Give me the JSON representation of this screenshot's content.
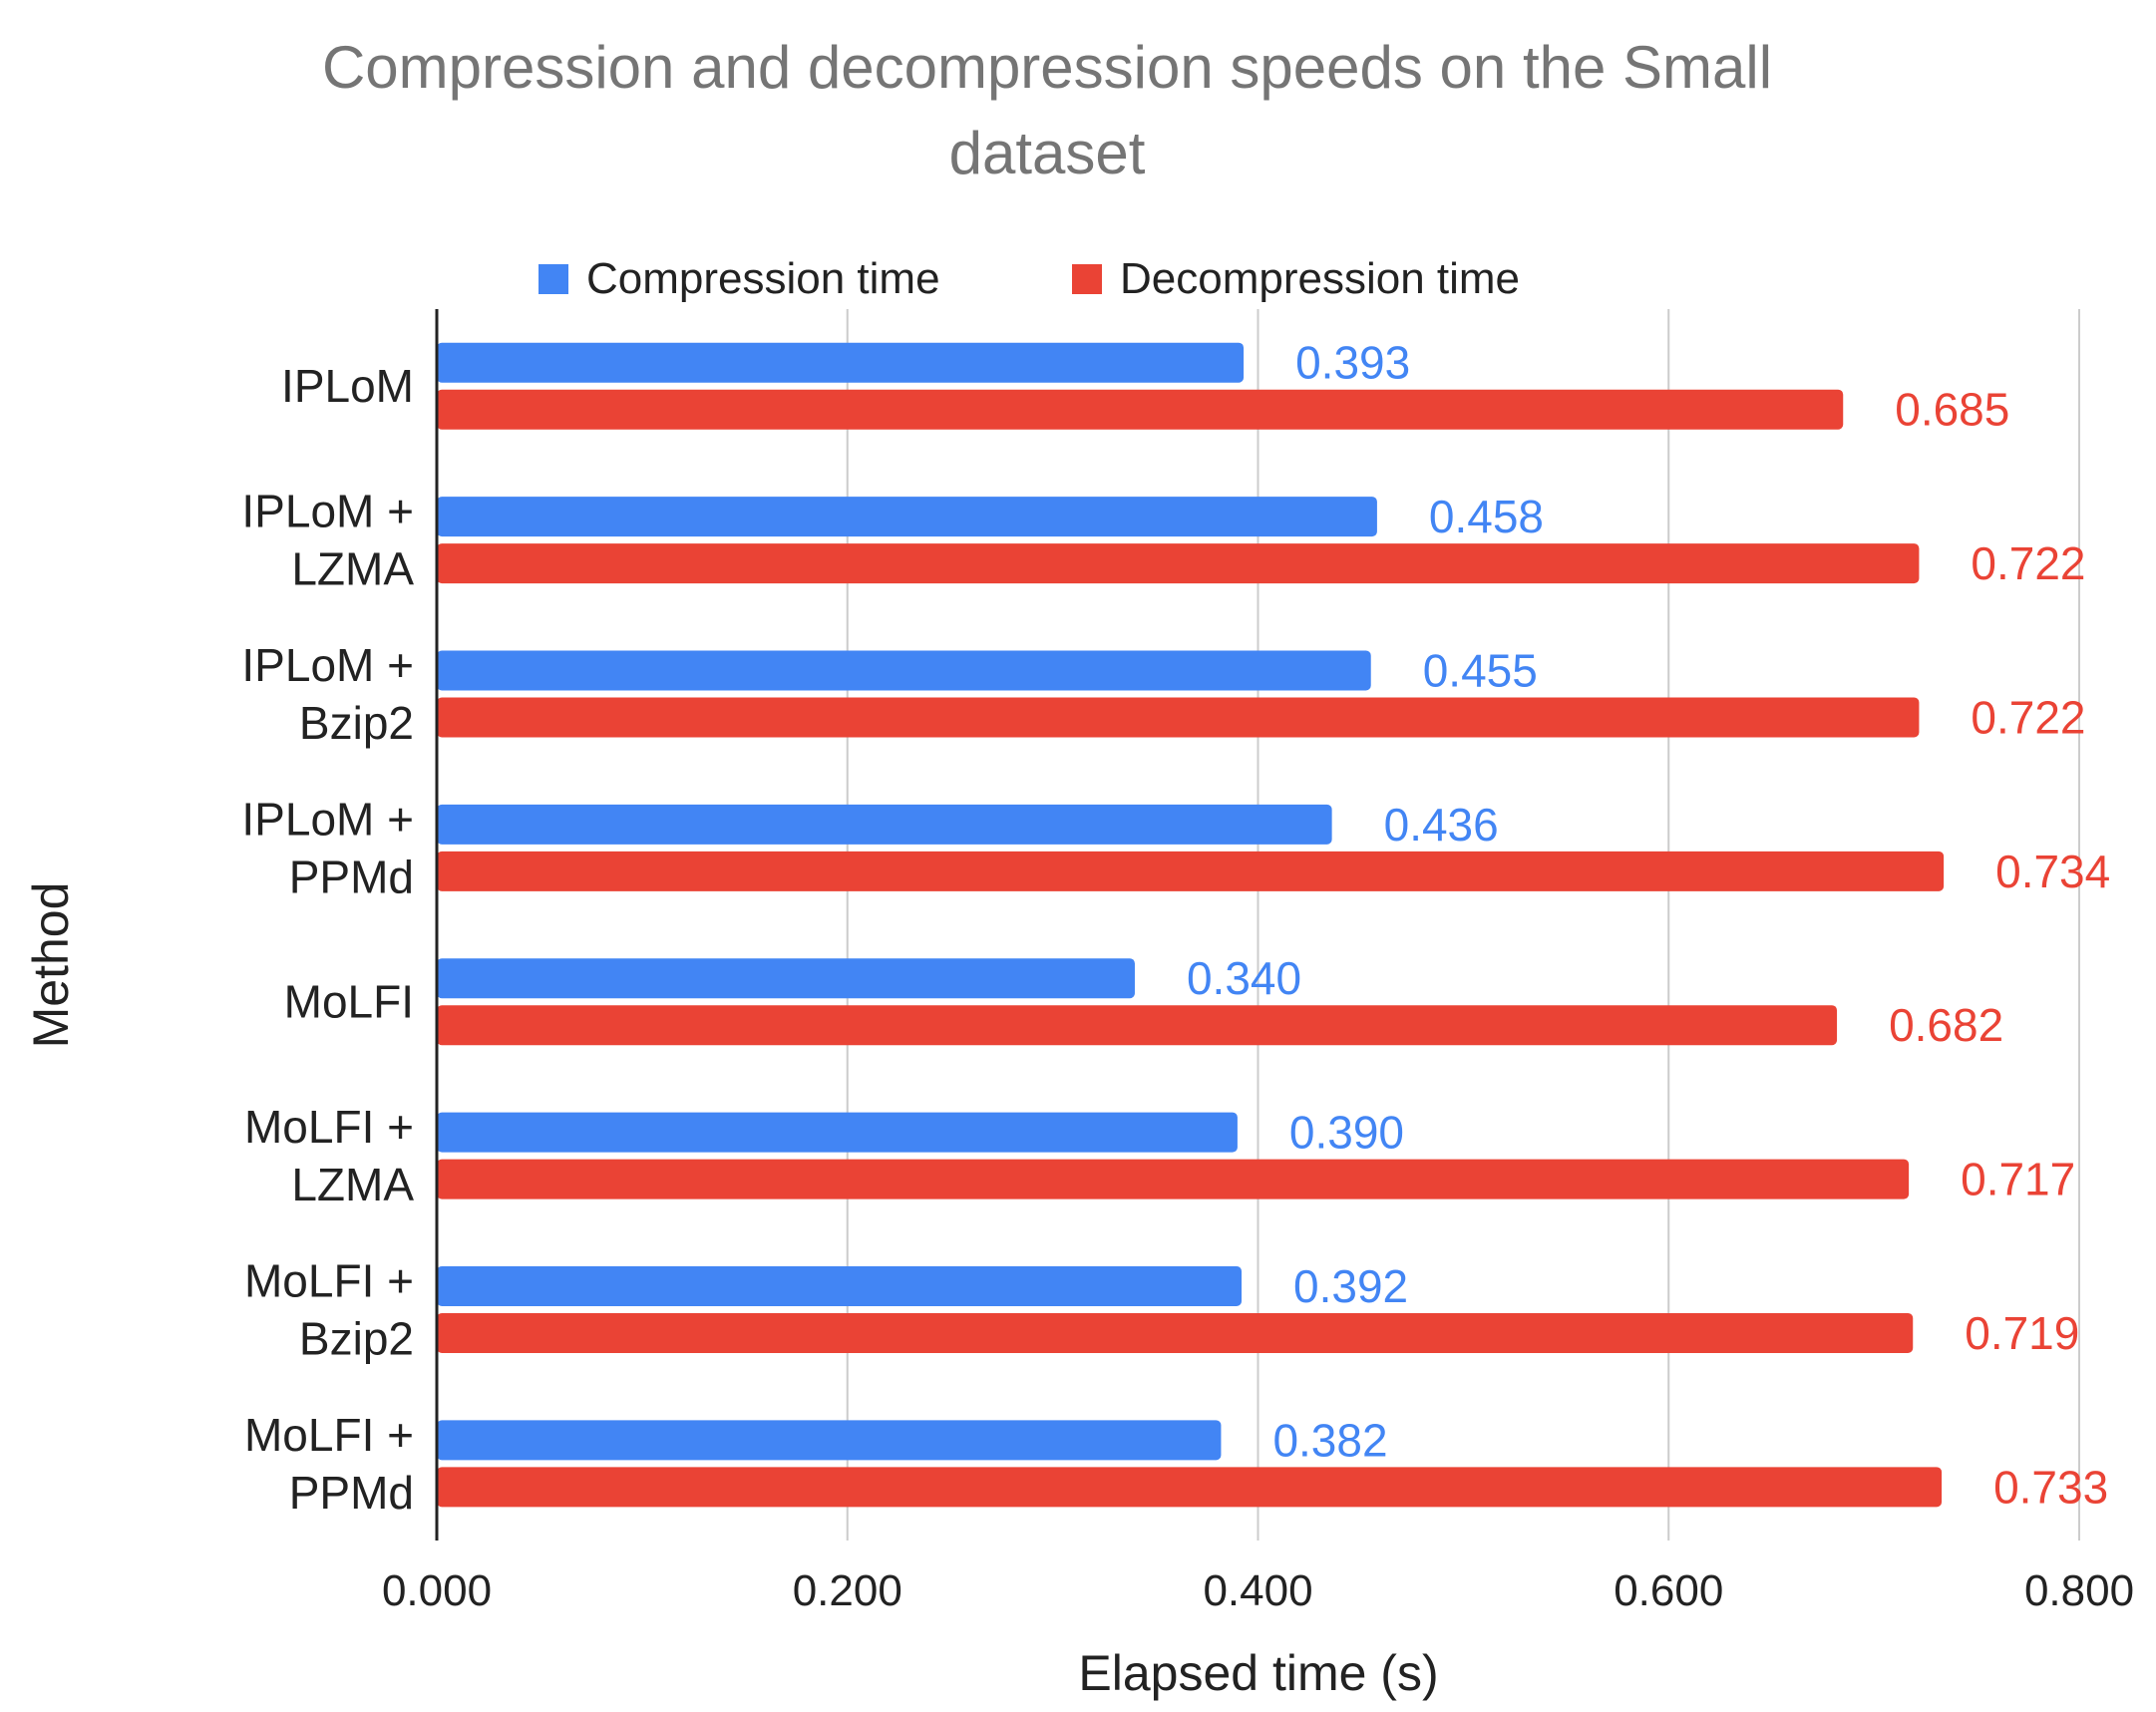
{
  "chart_data": {
    "type": "bar",
    "orientation": "horizontal",
    "title_lines": [
      "Compression and decompression speeds on the Small",
      "dataset"
    ],
    "xlabel": "Elapsed time (s)",
    "ylabel": "Method",
    "xlim": [
      0,
      0.8
    ],
    "xticks": [
      0,
      0.2,
      0.4,
      0.6,
      0.8
    ],
    "xtick_labels": [
      "0.000",
      "0.200",
      "0.400",
      "0.600",
      "0.800"
    ],
    "grid": true,
    "legend_position": "top",
    "categories": [
      [
        "IPLoM"
      ],
      [
        "IPLoM +",
        "LZMA"
      ],
      [
        "IPLoM +",
        "Bzip2"
      ],
      [
        "IPLoM +",
        "PPMd"
      ],
      [
        "MoLFI"
      ],
      [
        "MoLFI +",
        "LZMA"
      ],
      [
        "MoLFI +",
        "Bzip2"
      ],
      [
        "MoLFI +",
        "PPMd"
      ]
    ],
    "series": [
      {
        "name": "Compression time",
        "color": "#4285F4",
        "values": [
          0.393,
          0.458,
          0.455,
          0.436,
          0.34,
          0.39,
          0.392,
          0.382
        ],
        "labels": [
          "0.393",
          "0.458",
          "0.455",
          "0.436",
          "0.340",
          "0.390",
          "0.392",
          "0.382"
        ]
      },
      {
        "name": "Decompression time",
        "color": "#EA4335",
        "values": [
          0.685,
          0.722,
          0.722,
          0.734,
          0.682,
          0.717,
          0.719,
          0.733
        ],
        "labels": [
          "0.685",
          "0.722",
          "0.722",
          "0.734",
          "0.682",
          "0.717",
          "0.719",
          "0.733"
        ]
      }
    ]
  }
}
